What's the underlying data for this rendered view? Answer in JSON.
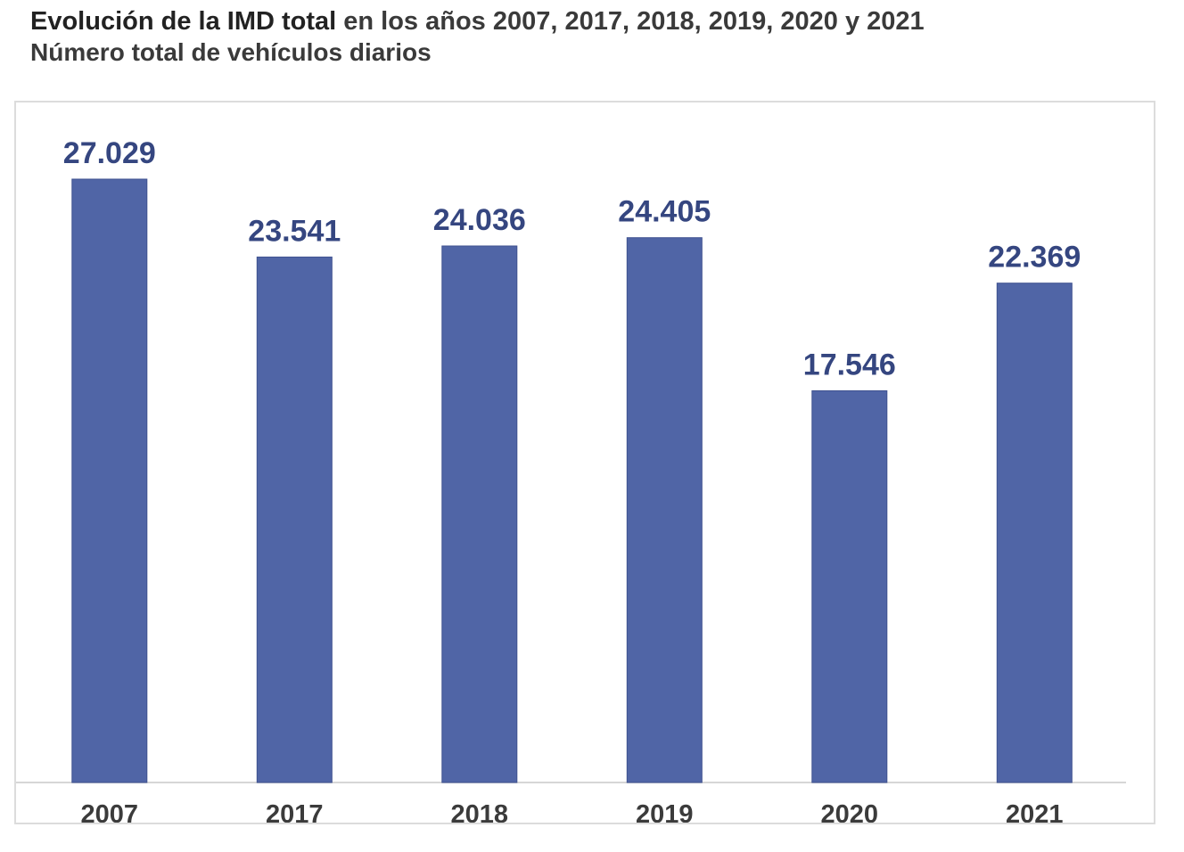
{
  "header": {
    "title_bold": "Evolución de la IMD total",
    "title_rest": " en los años 2007, 2017, 2018, 2019, 2020 y 2021",
    "subtitle": "Número total de vehículos diarios"
  },
  "chart_data": {
    "type": "bar",
    "title": "Evolución de la IMD total en los años 2007, 2017, 2018, 2019, 2020 y 2021",
    "subtitle": "Número total de vehículos diarios",
    "categories": [
      "2007",
      "2017",
      "2018",
      "2019",
      "2020",
      "2021"
    ],
    "values": [
      27029,
      23541,
      24036,
      24405,
      17546,
      22369
    ],
    "value_labels": [
      "27.029",
      "23.541",
      "24.036",
      "24.405",
      "17.546",
      "22.369"
    ],
    "xlabel": "",
    "ylabel": "",
    "ylim": [
      0,
      27029
    ],
    "grid": false,
    "legend": "none",
    "colors": {
      "bar": "#5065a6",
      "value_label": "#354680",
      "category_label": "#3b3b3b"
    }
  }
}
